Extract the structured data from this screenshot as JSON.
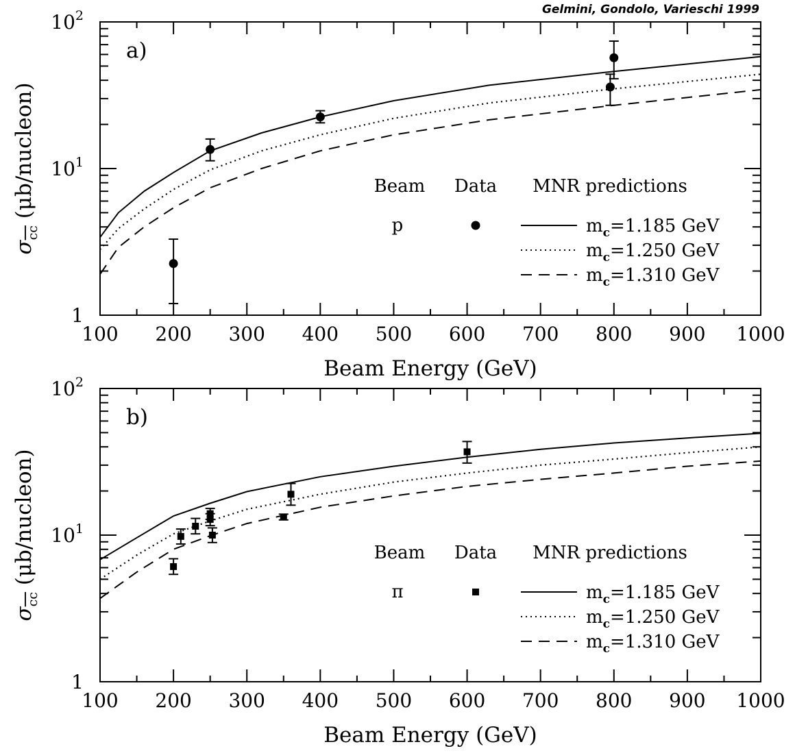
{
  "credit": "Gelmini, Gondolo, Varieschi 1999",
  "chart_data": [
    {
      "type": "line",
      "panel_label": "a)",
      "xlabel": "Beam Energy (GeV)",
      "ylabel": {
        "sigma": "σ",
        "sub": "cc",
        "rest": " (μb/nucleon)"
      },
      "x_scale": "linear",
      "y_scale": "log",
      "xlim": [
        100,
        1000
      ],
      "ylim": [
        1,
        100
      ],
      "x_ticks": [
        "100",
        "200",
        "300",
        "400",
        "500",
        "600",
        "700",
        "800",
        "900",
        "1000"
      ],
      "y_ticks": [
        {
          "v": 1,
          "base": "1",
          "exp": ""
        },
        {
          "v": 10,
          "base": "10",
          "exp": "1"
        },
        {
          "v": 100,
          "base": "10",
          "exp": "2"
        }
      ],
      "legend": {
        "headers": [
          "Beam",
          "Data",
          "MNR predictions"
        ],
        "beam": "p",
        "marker": "circle",
        "entries": [
          {
            "prefix": "m",
            "sub": "c",
            "value": "=1.185 GeV",
            "style": "solid"
          },
          {
            "prefix": "m",
            "sub": "c",
            "value": "=1.250 GeV",
            "style": "dotted"
          },
          {
            "prefix": "m",
            "sub": "c",
            "value": "=1.310 GeV",
            "style": "dashed"
          }
        ]
      },
      "series": [
        {
          "name": "m_c=1.185 GeV",
          "style": "solid",
          "x": [
            100,
            125,
            160,
            200,
            250,
            320,
            400,
            500,
            630,
            800,
            1000
          ],
          "y": [
            3.4,
            5.0,
            7.0,
            9.4,
            13.2,
            17.5,
            22.5,
            29,
            37,
            46,
            58
          ]
        },
        {
          "name": "m_c=1.250 GeV",
          "style": "dotted",
          "x": [
            100,
            125,
            160,
            200,
            250,
            320,
            400,
            500,
            630,
            800,
            1000
          ],
          "y": [
            2.8,
            3.9,
            5.3,
            7.2,
            9.8,
            13.2,
            17,
            22,
            28,
            35,
            44
          ]
        },
        {
          "name": "m_c=1.310 GeV",
          "style": "dashed",
          "x": [
            100,
            125,
            160,
            200,
            250,
            320,
            400,
            500,
            630,
            800,
            1000
          ],
          "y": [
            1.9,
            2.9,
            4.0,
            5.4,
            7.4,
            10,
            13.2,
            17,
            21.5,
            27,
            34.5
          ]
        }
      ],
      "points": [
        {
          "x": 200,
          "y": 2.25,
          "lo": 1.2,
          "hi": 3.3
        },
        {
          "x": 250,
          "y": 13.5,
          "lo": 11.3,
          "hi": 15.9
        },
        {
          "x": 400,
          "y": 22.5,
          "lo": 20.5,
          "hi": 24.8
        },
        {
          "x": 795,
          "y": 36,
          "lo": 27,
          "hi": 44
        },
        {
          "x": 800,
          "y": 57,
          "lo": 41,
          "hi": 74
        }
      ]
    },
    {
      "type": "line",
      "panel_label": "b)",
      "xlabel": "Beam Energy (GeV)",
      "ylabel": {
        "sigma": "σ",
        "sub": "cc",
        "rest": " (μb/nucleon)"
      },
      "x_scale": "linear",
      "y_scale": "log",
      "xlim": [
        100,
        1000
      ],
      "ylim": [
        1,
        100
      ],
      "x_ticks": [
        "100",
        "200",
        "300",
        "400",
        "500",
        "600",
        "700",
        "800",
        "900",
        "1000"
      ],
      "y_ticks": [
        {
          "v": 1,
          "base": "1",
          "exp": ""
        },
        {
          "v": 10,
          "base": "10",
          "exp": "1"
        },
        {
          "v": 100,
          "base": "10",
          "exp": "2"
        }
      ],
      "legend": {
        "headers": [
          "Beam",
          "Data",
          "MNR predictions"
        ],
        "beam": "π",
        "marker": "square",
        "entries": [
          {
            "prefix": "m",
            "sub": "c",
            "value": "=1.185 GeV",
            "style": "solid"
          },
          {
            "prefix": "m",
            "sub": "c",
            "value": "=1.250 GeV",
            "style": "dotted"
          },
          {
            "prefix": "m",
            "sub": "c",
            "value": "=1.310 GeV",
            "style": "dashed"
          }
        ]
      },
      "series": [
        {
          "name": "m_c=1.185 GeV",
          "style": "solid",
          "x": [
            100,
            150,
            200,
            250,
            300,
            400,
            500,
            600,
            700,
            800,
            900,
            1000
          ],
          "y": [
            6.8,
            9.6,
            13.5,
            16.5,
            19.8,
            25,
            29.5,
            34,
            38.5,
            42.5,
            46,
            49.5
          ]
        },
        {
          "name": "m_c=1.250 GeV",
          "style": "dotted",
          "x": [
            100,
            150,
            200,
            250,
            300,
            400,
            500,
            600,
            700,
            800,
            900,
            1000
          ],
          "y": [
            5.0,
            7.3,
            10.2,
            12.5,
            15,
            19,
            23,
            26.5,
            30,
            33,
            36.5,
            40
          ]
        },
        {
          "name": "m_c=1.310 GeV",
          "style": "dashed",
          "x": [
            100,
            150,
            200,
            250,
            300,
            400,
            500,
            600,
            700,
            800,
            900,
            1000
          ],
          "y": [
            3.7,
            5.6,
            8.0,
            9.9,
            12,
            15.5,
            18.5,
            21.5,
            24,
            26.5,
            29.5,
            32
          ]
        }
      ],
      "points": [
        {
          "x": 200,
          "y": 6.1,
          "lo": 5.4,
          "hi": 6.9
        },
        {
          "x": 210,
          "y": 9.8,
          "lo": 8.7,
          "hi": 11
        },
        {
          "x": 230,
          "y": 11.5,
          "lo": 10.2,
          "hi": 13
        },
        {
          "x": 250,
          "y": 14,
          "lo": 12.8,
          "hi": 15.2
        },
        {
          "x": 250,
          "y": 12.8,
          "lo": 11.6,
          "hi": 14
        },
        {
          "x": 253,
          "y": 10,
          "lo": 8.9,
          "hi": 11.2
        },
        {
          "x": 350,
          "y": 13.3,
          "lo": 12.7,
          "hi": 13.9
        },
        {
          "x": 360,
          "y": 19,
          "lo": 16,
          "hi": 22.5
        },
        {
          "x": 600,
          "y": 37,
          "lo": 31,
          "hi": 43.5
        }
      ]
    }
  ]
}
